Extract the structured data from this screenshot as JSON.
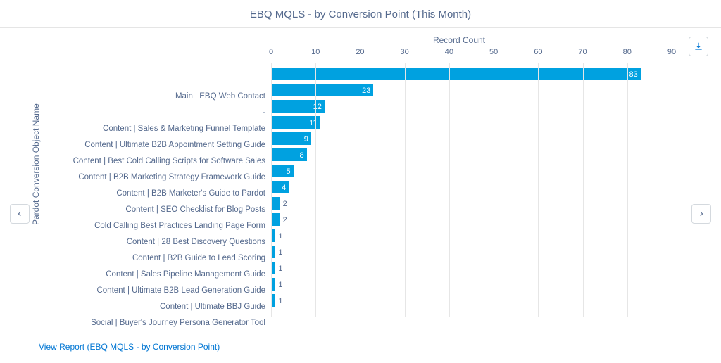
{
  "title": "EBQ MQLS - by Conversion Point (This Month)",
  "view_report": "View Report (EBQ MQLS - by Conversion Point)",
  "download_label": "Download",
  "prev_label": "Previous",
  "next_label": "Next",
  "chart": {
    "type": "bar-horizontal",
    "x_axis_title": "Record Count",
    "y_axis_title": "Pardot Conversion Object Name",
    "x_min": 0,
    "x_max": 90,
    "x_tick_step": 10,
    "x_ticks": [
      0,
      10,
      20,
      30,
      40,
      50,
      60,
      70,
      80,
      90
    ],
    "bar_color": "#00a1e0",
    "grid_color": "#e6e6e6",
    "label_color": "#54698d",
    "value_inside_threshold": 3,
    "categories": [
      "Main | EBQ Web Contact",
      "-",
      "Content | Sales & Marketing Funnel Template",
      "Content | Ultimate B2B Appointment Setting Guide",
      "Content | Best Cold Calling Scripts for Software Sales",
      "Content | B2B Marketing Strategy Framework Guide",
      "Content | B2B Marketer's Guide to Pardot",
      "Content | SEO Checklist for Blog Posts",
      "Cold Calling Best Practices Landing Page Form",
      "Content | 28 Best Discovery Questions",
      "Content | B2B Guide to Lead Scoring",
      "Content | Sales Pipeline Management Guide",
      "Content | Ultimate B2B Lead Generation Guide",
      "Content | Ultimate BBJ Guide",
      "Social | Buyer's Journey Persona Generator Tool"
    ],
    "values": [
      83,
      23,
      12,
      11,
      9,
      8,
      5,
      4,
      2,
      2,
      1,
      1,
      1,
      1,
      1
    ]
  }
}
